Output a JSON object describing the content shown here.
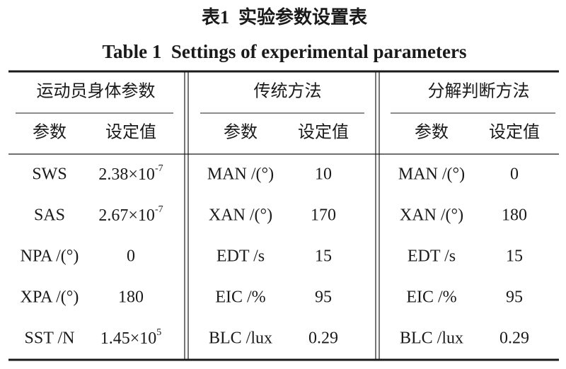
{
  "title_cn": "表1  实验参数设置表",
  "title_en": "Table 1  Settings of experimental parameters",
  "table": {
    "groups": [
      {
        "title": "运动员身体参数",
        "headers": [
          "参数",
          "设定值"
        ],
        "rows": [
          [
            "SWS",
            {
              "base": "2.38×10",
              "sup": "-7"
            }
          ],
          [
            "SAS",
            {
              "base": "2.67×10",
              "sup": "-7"
            }
          ],
          [
            "NPA /(°)",
            "0"
          ],
          [
            "XPA /(°)",
            "180"
          ],
          [
            "SST /N",
            {
              "base": "1.45×10",
              "sup": "5"
            }
          ]
        ]
      },
      {
        "title": "传统方法",
        "headers": [
          "参数",
          "设定值"
        ],
        "rows": [
          [
            "MAN /(°)",
            "10"
          ],
          [
            "XAN /(°)",
            "170"
          ],
          [
            "EDT /s",
            "15"
          ],
          [
            "EIC /%",
            "95"
          ],
          [
            "BLC /lux",
            "0.29"
          ]
        ]
      },
      {
        "title": "分解判断方法",
        "headers": [
          "参数",
          "设定值"
        ],
        "rows": [
          [
            "MAN /(°)",
            "0"
          ],
          [
            "XAN /(°)",
            "180"
          ],
          [
            "EDT /s",
            "15"
          ],
          [
            "EIC /%",
            "95"
          ],
          [
            "BLC /lux",
            "0.29"
          ]
        ]
      }
    ]
  }
}
